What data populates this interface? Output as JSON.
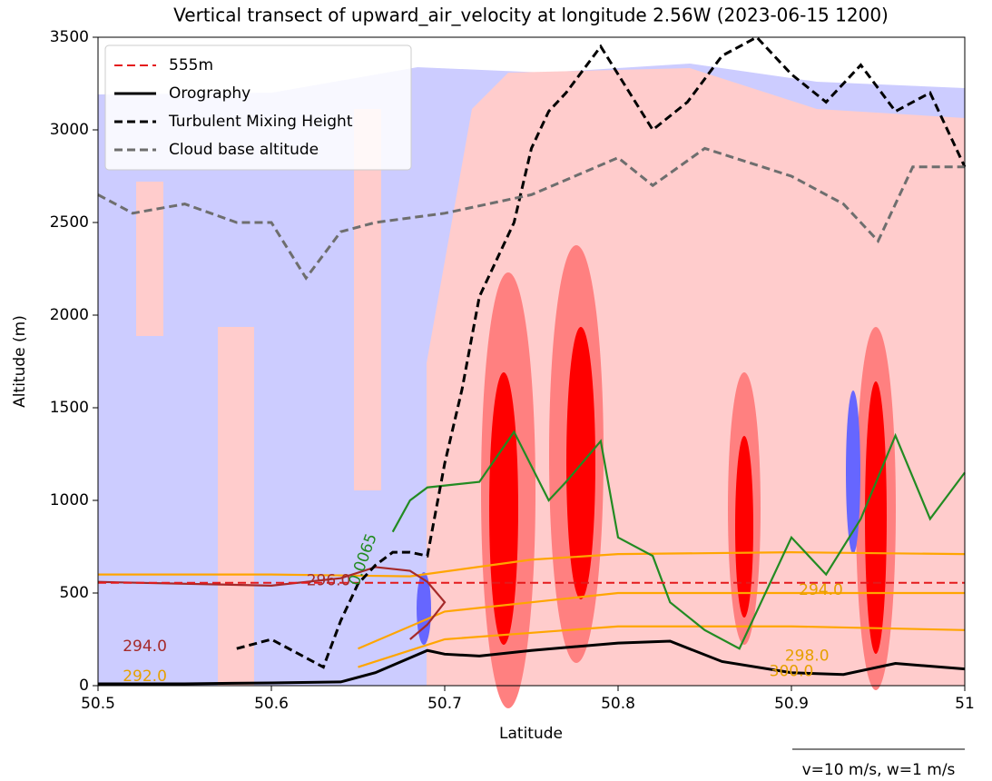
{
  "chart_data": {
    "type": "line",
    "title": "Vertical transect of upward_air_velocity at longitude 2.56W (2023-06-15 1200)",
    "xlabel": "Latitude",
    "ylabel": "Altitude (m)",
    "xlim": [
      50.5,
      51.0
    ],
    "ylim": [
      0,
      3500
    ],
    "xticks": [
      50.5,
      50.6,
      50.7,
      50.8,
      50.9,
      51.0
    ],
    "yticks": [
      0,
      500,
      1000,
      1500,
      2000,
      2500,
      3000,
      3500
    ],
    "legend": "upper left",
    "series": [
      {
        "name": "555m",
        "color": "#e41a1c",
        "dash": "dashed",
        "x": [
          50.5,
          51.0
        ],
        "values": [
          555,
          555
        ]
      },
      {
        "name": "Orography",
        "color": "#000000",
        "dash": "solid",
        "x": [
          50.5,
          50.55,
          50.6,
          50.64,
          50.66,
          50.68,
          50.69,
          50.7,
          50.72,
          50.75,
          50.8,
          50.83,
          50.86,
          50.9,
          50.93,
          50.96,
          51.0
        ],
        "values": [
          10,
          10,
          15,
          20,
          70,
          150,
          190,
          170,
          160,
          190,
          230,
          240,
          130,
          70,
          60,
          120,
          90
        ]
      },
      {
        "name": "Turbulent Mixing Height",
        "color": "#000000",
        "dash": "dashed",
        "x": [
          50.58,
          50.6,
          50.62,
          50.63,
          50.64,
          50.65,
          50.66,
          50.67,
          50.68,
          50.69,
          50.7,
          50.71,
          50.72,
          50.74,
          50.75,
          50.76,
          50.77,
          50.79,
          50.8,
          50.82,
          50.84,
          50.86,
          50.88,
          50.9,
          50.92,
          50.94,
          50.96,
          50.98,
          51.0
        ],
        "values": [
          200,
          250,
          150,
          100,
          350,
          550,
          650,
          720,
          720,
          700,
          1200,
          1600,
          2100,
          2500,
          2900,
          3100,
          3200,
          3450,
          3300,
          3000,
          3150,
          3400,
          3500,
          3300,
          3150,
          3350,
          3100,
          3200,
          2800
        ]
      },
      {
        "name": "Cloud base altitude",
        "color": "#6e6e6e",
        "dash": "dashed",
        "x": [
          50.5,
          50.52,
          50.55,
          50.58,
          50.6,
          50.62,
          50.64,
          50.66,
          50.7,
          50.75,
          50.8,
          50.82,
          50.85,
          50.9,
          50.93,
          50.95,
          50.97,
          51.0
        ],
        "values": [
          2650,
          2550,
          2600,
          2500,
          2500,
          2200,
          2450,
          2500,
          2550,
          2650,
          2850,
          2700,
          2900,
          2750,
          2600,
          2400,
          2800,
          2800
        ]
      }
    ],
    "contours": [
      {
        "color": "#ffa500",
        "x": [
          50.5,
          50.6,
          50.68,
          50.75,
          50.8,
          50.9,
          51.0
        ],
        "values": [
          600,
          600,
          590,
          680,
          710,
          720,
          710
        ]
      },
      {
        "color": "#ffa500",
        "x": [
          50.65,
          50.7,
          50.8,
          50.9,
          51.0
        ],
        "values": [
          200,
          400,
          500,
          500,
          500
        ]
      },
      {
        "color": "#ffa500",
        "x": [
          50.65,
          50.7,
          50.8,
          50.9,
          51.0
        ],
        "values": [
          100,
          250,
          320,
          320,
          300
        ]
      },
      {
        "color": "#228b22",
        "x": [
          50.67,
          50.68,
          50.69,
          50.72,
          50.74,
          50.76,
          50.77,
          50.79,
          50.8,
          50.82,
          50.83,
          50.85,
          50.87,
          50.9,
          50.92,
          50.94,
          50.96,
          50.98,
          51.0
        ],
        "values": [
          830,
          1000,
          1070,
          1100,
          1370,
          1000,
          1100,
          1320,
          800,
          700,
          450,
          300,
          200,
          800,
          600,
          900,
          1350,
          900,
          1150
        ]
      },
      {
        "color": "#a52a2a",
        "x": [
          50.5,
          50.6,
          50.64,
          50.66,
          50.68,
          50.69,
          50.7,
          50.69,
          50.68
        ],
        "values": [
          560,
          540,
          580,
          640,
          620,
          560,
          450,
          330,
          250
        ]
      }
    ],
    "annotations": [
      {
        "text": "296.0",
        "x": 50.633,
        "y": 565,
        "color": "#a52a2a"
      },
      {
        "text": "294.0",
        "x": 50.527,
        "y": 210,
        "color": "#a52a2a"
      },
      {
        "text": "292.0",
        "x": 50.527,
        "y": 50,
        "color": "#e6a000"
      },
      {
        "text": "0.0065",
        "x": 50.653,
        "y": 680,
        "color": "#228b22"
      },
      {
        "text": "294.0",
        "x": 50.917,
        "y": 515,
        "color": "#e6a000"
      },
      {
        "text": "298.0",
        "x": 50.909,
        "y": 160,
        "color": "#e6a000"
      },
      {
        "text": "300.0",
        "x": 50.9,
        "y": 75,
        "color": "#e6a000"
      }
    ],
    "quiver_key": "v=10 m/s, w=1 m/s"
  }
}
